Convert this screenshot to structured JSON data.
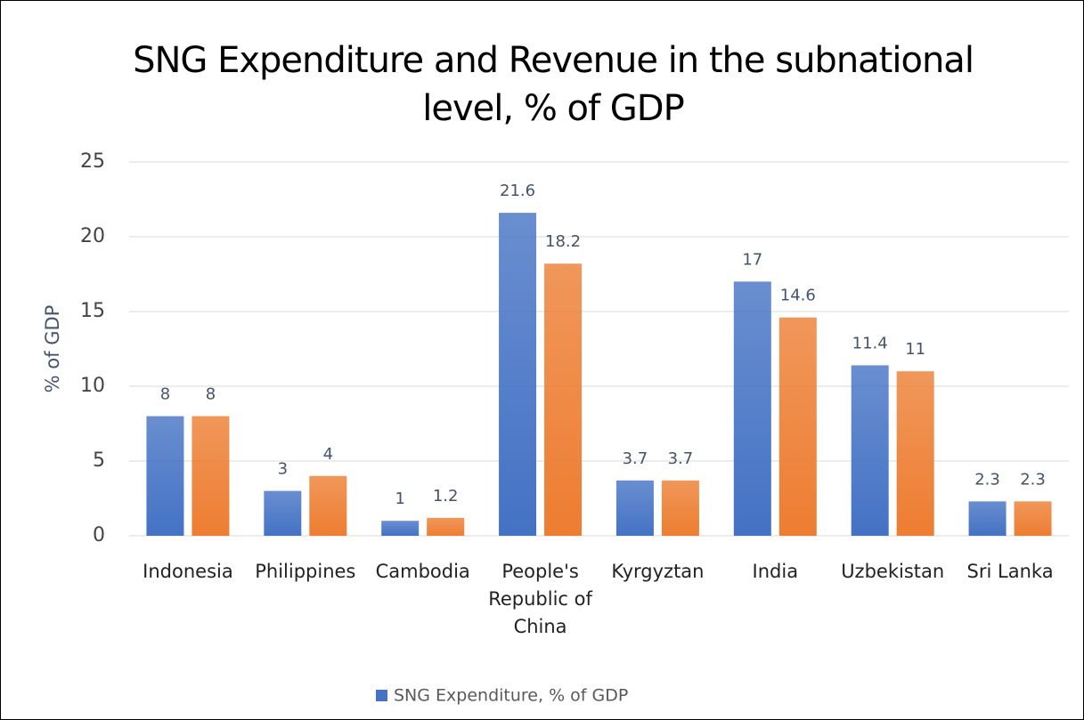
{
  "chart_data": {
    "type": "bar",
    "title": "SNG Expenditure and Revenue in the subnational level, % of GDP",
    "y_label": "% of GDP",
    "categories": [
      "Indonesia",
      "Philippines",
      "Cambodia",
      "People's Republic of China",
      "Kyrgyztan",
      "India",
      "Uzbekistan",
      "Sri Lanka"
    ],
    "series": [
      {
        "name": "SNG Expenditure, % of GDP",
        "color": "#4472c4",
        "values": [
          8,
          3,
          1,
          21.6,
          3.7,
          17,
          11.4,
          2.3
        ]
      },
      {
        "color": "#ed7d31",
        "values": [
          8,
          4,
          1.2,
          18.2,
          3.7,
          14.6,
          11,
          2.3
        ]
      }
    ],
    "ylim": [
      0,
      25
    ],
    "yticks": [
      0,
      5,
      10,
      15,
      20,
      25
    ],
    "grid": true,
    "legend": "bottom"
  }
}
